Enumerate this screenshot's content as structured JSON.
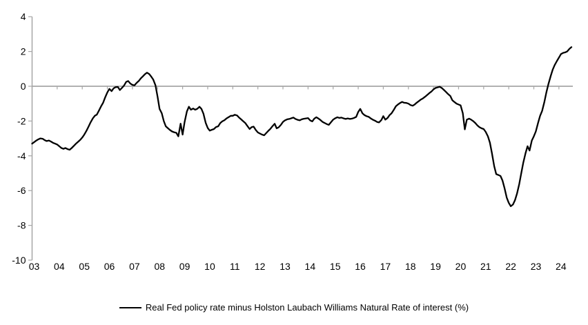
{
  "chart_data": {
    "type": "line",
    "title": "",
    "xlabel": "",
    "ylabel": "",
    "legend": "Real Fed policy rate minus Holston Laubach Williams Natural Rate of interest (%)",
    "legend_position": "bottom-center",
    "grid": "zero-line-only",
    "ylim": [
      -10,
      4
    ],
    "y_ticks": [
      {
        "label": "4",
        "value": 4
      },
      {
        "label": "2",
        "value": 2
      },
      {
        "label": "0",
        "value": 0
      },
      {
        "label": "-2",
        "value": -2
      },
      {
        "label": "-4",
        "value": -4
      },
      {
        "label": "-6",
        "value": -6
      },
      {
        "label": "-8",
        "value": -8
      },
      {
        "label": "-10",
        "value": -10
      }
    ],
    "xlim": [
      2003,
      2024.6
    ],
    "x_ticks": [
      {
        "label": "03",
        "year": 2003
      },
      {
        "label": "04",
        "year": 2004
      },
      {
        "label": "05",
        "year": 2005
      },
      {
        "label": "06",
        "year": 2006
      },
      {
        "label": "07",
        "year": 2007
      },
      {
        "label": "08",
        "year": 2008
      },
      {
        "label": "09",
        "year": 2009
      },
      {
        "label": "10",
        "year": 2010
      },
      {
        "label": "11",
        "year": 2011
      },
      {
        "label": "12",
        "year": 2012
      },
      {
        "label": "13",
        "year": 2013
      },
      {
        "label": "14",
        "year": 2014
      },
      {
        "label": "15",
        "year": 2015
      },
      {
        "label": "16",
        "year": 2016
      },
      {
        "label": "17",
        "year": 2017
      },
      {
        "label": "18",
        "year": 2018
      },
      {
        "label": "19",
        "year": 2019
      },
      {
        "label": "20",
        "year": 2020
      },
      {
        "label": "21",
        "year": 2021
      },
      {
        "label": "22",
        "year": 2022
      },
      {
        "label": "23",
        "year": 2023
      },
      {
        "label": "24",
        "year": 2024
      }
    ],
    "colors": {
      "series": "#000000",
      "axis": "#a6a6a6",
      "zero_line": "#a6a6a6",
      "text": "#000000",
      "background": "#ffffff"
    },
    "series": [
      {
        "name": "Real Fed policy rate minus Holston Laubach Williams Natural Rate of interest (%)",
        "color": "#000000",
        "points": [
          [
            2003.0,
            -3.3
          ],
          [
            2003.08,
            -3.22
          ],
          [
            2003.17,
            -3.12
          ],
          [
            2003.25,
            -3.05
          ],
          [
            2003.33,
            -3.0
          ],
          [
            2003.42,
            -3.02
          ],
          [
            2003.5,
            -3.1
          ],
          [
            2003.58,
            -3.15
          ],
          [
            2003.67,
            -3.12
          ],
          [
            2003.75,
            -3.18
          ],
          [
            2003.83,
            -3.25
          ],
          [
            2003.92,
            -3.3
          ],
          [
            2004.0,
            -3.35
          ],
          [
            2004.08,
            -3.45
          ],
          [
            2004.17,
            -3.55
          ],
          [
            2004.25,
            -3.6
          ],
          [
            2004.33,
            -3.55
          ],
          [
            2004.42,
            -3.62
          ],
          [
            2004.5,
            -3.65
          ],
          [
            2004.58,
            -3.55
          ],
          [
            2004.67,
            -3.42
          ],
          [
            2004.75,
            -3.3
          ],
          [
            2004.83,
            -3.2
          ],
          [
            2004.92,
            -3.08
          ],
          [
            2005.0,
            -2.95
          ],
          [
            2005.08,
            -2.78
          ],
          [
            2005.17,
            -2.55
          ],
          [
            2005.25,
            -2.32
          ],
          [
            2005.33,
            -2.08
          ],
          [
            2005.42,
            -1.85
          ],
          [
            2005.5,
            -1.7
          ],
          [
            2005.58,
            -1.63
          ],
          [
            2005.67,
            -1.38
          ],
          [
            2005.75,
            -1.15
          ],
          [
            2005.83,
            -0.95
          ],
          [
            2005.92,
            -0.62
          ],
          [
            2006.0,
            -0.35
          ],
          [
            2006.08,
            -0.15
          ],
          [
            2006.17,
            -0.28
          ],
          [
            2006.25,
            -0.12
          ],
          [
            2006.33,
            -0.05
          ],
          [
            2006.42,
            -0.04
          ],
          [
            2006.5,
            -0.22
          ],
          [
            2006.58,
            -0.1
          ],
          [
            2006.67,
            0.05
          ],
          [
            2006.75,
            0.25
          ],
          [
            2006.83,
            0.3
          ],
          [
            2006.92,
            0.15
          ],
          [
            2007.0,
            0.08
          ],
          [
            2007.08,
            0.05
          ],
          [
            2007.17,
            0.2
          ],
          [
            2007.25,
            0.3
          ],
          [
            2007.33,
            0.45
          ],
          [
            2007.42,
            0.58
          ],
          [
            2007.5,
            0.7
          ],
          [
            2007.58,
            0.78
          ],
          [
            2007.67,
            0.7
          ],
          [
            2007.75,
            0.55
          ],
          [
            2007.83,
            0.38
          ],
          [
            2007.92,
            0.05
          ],
          [
            2008.0,
            -0.6
          ],
          [
            2008.08,
            -1.3
          ],
          [
            2008.17,
            -1.55
          ],
          [
            2008.25,
            -2.0
          ],
          [
            2008.33,
            -2.3
          ],
          [
            2008.42,
            -2.42
          ],
          [
            2008.5,
            -2.52
          ],
          [
            2008.58,
            -2.6
          ],
          [
            2008.67,
            -2.65
          ],
          [
            2008.75,
            -2.68
          ],
          [
            2008.83,
            -2.88
          ],
          [
            2008.92,
            -2.15
          ],
          [
            2009.0,
            -2.78
          ],
          [
            2009.08,
            -2.05
          ],
          [
            2009.17,
            -1.45
          ],
          [
            2009.25,
            -1.18
          ],
          [
            2009.33,
            -1.35
          ],
          [
            2009.42,
            -1.28
          ],
          [
            2009.5,
            -1.35
          ],
          [
            2009.58,
            -1.3
          ],
          [
            2009.67,
            -1.18
          ],
          [
            2009.75,
            -1.3
          ],
          [
            2009.83,
            -1.58
          ],
          [
            2009.92,
            -2.1
          ],
          [
            2010.0,
            -2.4
          ],
          [
            2010.08,
            -2.55
          ],
          [
            2010.17,
            -2.5
          ],
          [
            2010.25,
            -2.46
          ],
          [
            2010.33,
            -2.35
          ],
          [
            2010.42,
            -2.3
          ],
          [
            2010.5,
            -2.12
          ],
          [
            2010.58,
            -2.02
          ],
          [
            2010.67,
            -1.95
          ],
          [
            2010.75,
            -1.85
          ],
          [
            2010.83,
            -1.78
          ],
          [
            2010.92,
            -1.7
          ],
          [
            2011.0,
            -1.7
          ],
          [
            2011.08,
            -1.64
          ],
          [
            2011.17,
            -1.68
          ],
          [
            2011.25,
            -1.8
          ],
          [
            2011.33,
            -1.9
          ],
          [
            2011.42,
            -2.02
          ],
          [
            2011.5,
            -2.12
          ],
          [
            2011.58,
            -2.28
          ],
          [
            2011.67,
            -2.46
          ],
          [
            2011.75,
            -2.35
          ],
          [
            2011.83,
            -2.32
          ],
          [
            2011.92,
            -2.52
          ],
          [
            2012.0,
            -2.66
          ],
          [
            2012.08,
            -2.72
          ],
          [
            2012.17,
            -2.78
          ],
          [
            2012.25,
            -2.82
          ],
          [
            2012.33,
            -2.7
          ],
          [
            2012.42,
            -2.56
          ],
          [
            2012.5,
            -2.45
          ],
          [
            2012.58,
            -2.3
          ],
          [
            2012.67,
            -2.16
          ],
          [
            2012.75,
            -2.42
          ],
          [
            2012.83,
            -2.36
          ],
          [
            2012.92,
            -2.22
          ],
          [
            2013.0,
            -2.05
          ],
          [
            2013.08,
            -1.96
          ],
          [
            2013.17,
            -1.9
          ],
          [
            2013.25,
            -1.88
          ],
          [
            2013.33,
            -1.84
          ],
          [
            2013.42,
            -1.8
          ],
          [
            2013.5,
            -1.88
          ],
          [
            2013.58,
            -1.93
          ],
          [
            2013.67,
            -1.96
          ],
          [
            2013.75,
            -1.9
          ],
          [
            2013.83,
            -1.87
          ],
          [
            2013.92,
            -1.85
          ],
          [
            2014.0,
            -1.83
          ],
          [
            2014.08,
            -1.96
          ],
          [
            2014.17,
            -2.02
          ],
          [
            2014.25,
            -1.86
          ],
          [
            2014.33,
            -1.78
          ],
          [
            2014.42,
            -1.86
          ],
          [
            2014.5,
            -1.95
          ],
          [
            2014.58,
            -2.05
          ],
          [
            2014.67,
            -2.12
          ],
          [
            2014.75,
            -2.18
          ],
          [
            2014.83,
            -2.22
          ],
          [
            2014.92,
            -2.06
          ],
          [
            2015.0,
            -1.92
          ],
          [
            2015.08,
            -1.84
          ],
          [
            2015.17,
            -1.78
          ],
          [
            2015.25,
            -1.82
          ],
          [
            2015.33,
            -1.8
          ],
          [
            2015.42,
            -1.85
          ],
          [
            2015.5,
            -1.88
          ],
          [
            2015.58,
            -1.85
          ],
          [
            2015.67,
            -1.88
          ],
          [
            2015.75,
            -1.86
          ],
          [
            2015.83,
            -1.82
          ],
          [
            2015.92,
            -1.76
          ],
          [
            2016.0,
            -1.48
          ],
          [
            2016.08,
            -1.3
          ],
          [
            2016.17,
            -1.56
          ],
          [
            2016.25,
            -1.66
          ],
          [
            2016.33,
            -1.72
          ],
          [
            2016.42,
            -1.76
          ],
          [
            2016.5,
            -1.85
          ],
          [
            2016.58,
            -1.92
          ],
          [
            2016.67,
            -1.98
          ],
          [
            2016.75,
            -2.05
          ],
          [
            2016.83,
            -2.08
          ],
          [
            2016.92,
            -1.95
          ],
          [
            2017.0,
            -1.72
          ],
          [
            2017.08,
            -1.92
          ],
          [
            2017.17,
            -1.82
          ],
          [
            2017.25,
            -1.66
          ],
          [
            2017.33,
            -1.55
          ],
          [
            2017.42,
            -1.35
          ],
          [
            2017.5,
            -1.15
          ],
          [
            2017.58,
            -1.05
          ],
          [
            2017.67,
            -0.96
          ],
          [
            2017.75,
            -0.9
          ],
          [
            2017.83,
            -0.95
          ],
          [
            2017.92,
            -0.96
          ],
          [
            2018.0,
            -1.0
          ],
          [
            2018.08,
            -1.08
          ],
          [
            2018.17,
            -1.12
          ],
          [
            2018.25,
            -1.05
          ],
          [
            2018.33,
            -0.95
          ],
          [
            2018.42,
            -0.85
          ],
          [
            2018.5,
            -0.76
          ],
          [
            2018.58,
            -0.7
          ],
          [
            2018.67,
            -0.6
          ],
          [
            2018.75,
            -0.5
          ],
          [
            2018.83,
            -0.4
          ],
          [
            2018.92,
            -0.3
          ],
          [
            2019.0,
            -0.18
          ],
          [
            2019.08,
            -0.1
          ],
          [
            2019.17,
            -0.06
          ],
          [
            2019.25,
            -0.03
          ],
          [
            2019.33,
            -0.1
          ],
          [
            2019.42,
            -0.22
          ],
          [
            2019.5,
            -0.33
          ],
          [
            2019.58,
            -0.45
          ],
          [
            2019.67,
            -0.56
          ],
          [
            2019.75,
            -0.8
          ],
          [
            2019.83,
            -0.9
          ],
          [
            2019.92,
            -1.0
          ],
          [
            2020.0,
            -1.05
          ],
          [
            2020.08,
            -1.1
          ],
          [
            2020.17,
            -1.55
          ],
          [
            2020.25,
            -2.48
          ],
          [
            2020.33,
            -1.92
          ],
          [
            2020.42,
            -1.86
          ],
          [
            2020.5,
            -1.92
          ],
          [
            2020.58,
            -2.0
          ],
          [
            2020.67,
            -2.12
          ],
          [
            2020.75,
            -2.25
          ],
          [
            2020.83,
            -2.35
          ],
          [
            2020.92,
            -2.42
          ],
          [
            2021.0,
            -2.46
          ],
          [
            2021.08,
            -2.62
          ],
          [
            2021.17,
            -2.88
          ],
          [
            2021.25,
            -3.25
          ],
          [
            2021.33,
            -3.85
          ],
          [
            2021.42,
            -4.6
          ],
          [
            2021.5,
            -5.05
          ],
          [
            2021.58,
            -5.1
          ],
          [
            2021.67,
            -5.16
          ],
          [
            2021.75,
            -5.42
          ],
          [
            2021.83,
            -5.85
          ],
          [
            2021.92,
            -6.4
          ],
          [
            2022.0,
            -6.7
          ],
          [
            2022.08,
            -6.9
          ],
          [
            2022.17,
            -6.8
          ],
          [
            2022.25,
            -6.55
          ],
          [
            2022.33,
            -6.18
          ],
          [
            2022.42,
            -5.62
          ],
          [
            2022.5,
            -5.0
          ],
          [
            2022.58,
            -4.4
          ],
          [
            2022.67,
            -3.85
          ],
          [
            2022.75,
            -3.45
          ],
          [
            2022.83,
            -3.7
          ],
          [
            2022.92,
            -3.12
          ],
          [
            2023.0,
            -2.88
          ],
          [
            2023.08,
            -2.6
          ],
          [
            2023.17,
            -2.1
          ],
          [
            2023.25,
            -1.7
          ],
          [
            2023.33,
            -1.42
          ],
          [
            2023.42,
            -0.9
          ],
          [
            2023.5,
            -0.35
          ],
          [
            2023.58,
            0.12
          ],
          [
            2023.67,
            0.58
          ],
          [
            2023.75,
            0.95
          ],
          [
            2023.83,
            1.22
          ],
          [
            2023.92,
            1.45
          ],
          [
            2024.0,
            1.65
          ],
          [
            2024.08,
            1.85
          ],
          [
            2024.17,
            1.92
          ],
          [
            2024.25,
            1.95
          ],
          [
            2024.33,
            2.0
          ],
          [
            2024.42,
            2.15
          ],
          [
            2024.5,
            2.25
          ]
        ]
      }
    ]
  }
}
